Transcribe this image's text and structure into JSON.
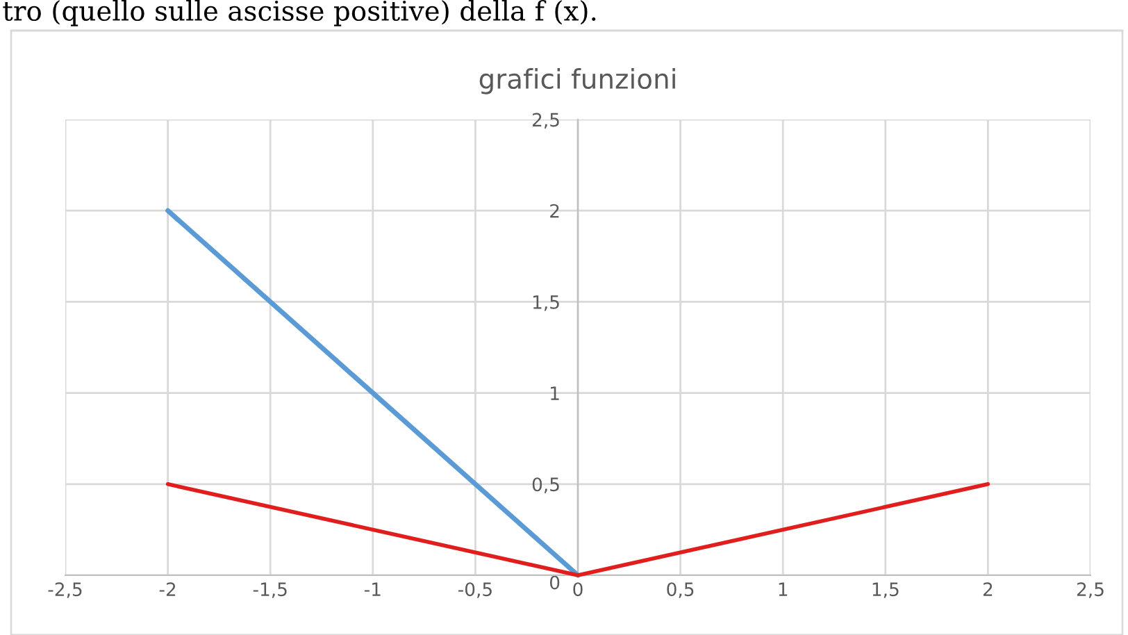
{
  "chart_data": {
    "type": "line",
    "title": "grafici funzioni",
    "annotations": [
      "tro (quello sulle ascisse positive) della f (x)."
    ],
    "series": [
      {
        "color": "#5b9bd5",
        "x": [
          -2,
          0
        ],
        "values": [
          2,
          0
        ]
      },
      {
        "color": "#e01e1e",
        "x": [
          -2,
          0,
          2
        ],
        "values": [
          0.5,
          0,
          0.5
        ]
      }
    ],
    "xlim": [
      -2.5,
      2.5
    ],
    "ylim": [
      0,
      2.5
    ],
    "xticks": [
      {
        "value": -2.5,
        "label": "-2,5"
      },
      -2,
      {
        "value": -1.5,
        "label": "-1,5"
      },
      -1,
      {
        "value": -0.5,
        "label": "-0,5"
      },
      0,
      {
        "value": 0.5,
        "label": "0,5"
      },
      1,
      {
        "value": 1.5,
        "label": "1,5"
      },
      2,
      {
        "value": 2.5,
        "label": "2,5"
      }
    ],
    "yticks": [
      0,
      {
        "value": 0.5,
        "label": "0,5"
      },
      1,
      {
        "value": 1.5,
        "label": "1,5"
      },
      2,
      {
        "value": 2.5,
        "label": "2,5"
      }
    ],
    "grid": true,
    "marker": "none",
    "line_style": "solid"
  }
}
